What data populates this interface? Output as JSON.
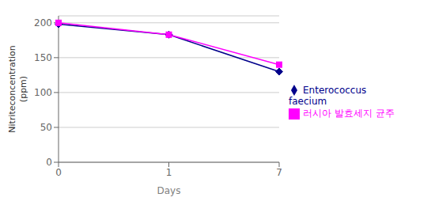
{
  "chart_data": {
    "type": "line",
    "categories": [
      "0",
      "1",
      "7"
    ],
    "xlabel": "Days",
    "ylabel": "Nitriteconcentration\n(ppm)",
    "series": [
      {
        "name": "Enterococcus faecium",
        "color": "#00008B",
        "marker": "diamond",
        "values": [
          198,
          183,
          130
        ]
      },
      {
        "name": "러시아 발효세지 균주",
        "color": "#FF00FF",
        "marker": "square",
        "values": [
          200,
          183,
          140
        ]
      }
    ],
    "ylim": [
      0,
      210
    ],
    "yticks": [
      0,
      50,
      100,
      150,
      200
    ],
    "grid": true,
    "legend": "right"
  }
}
